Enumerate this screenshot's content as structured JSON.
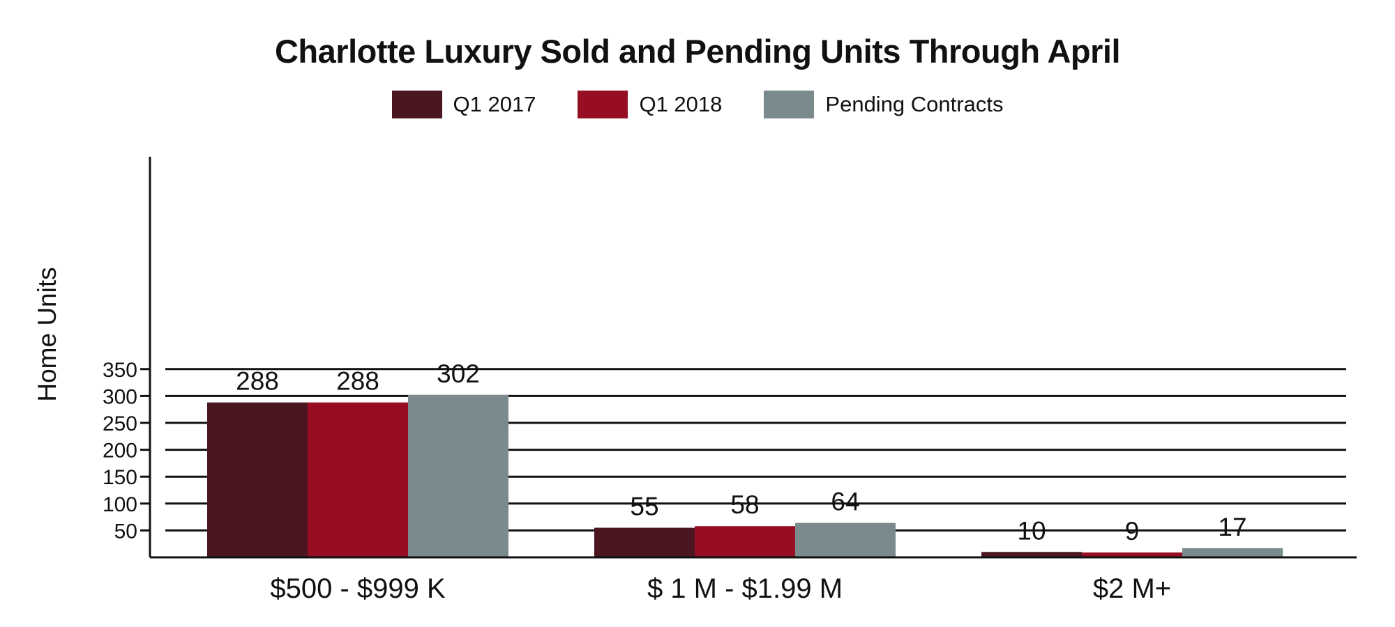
{
  "chart_data": {
    "type": "bar",
    "title": "Charlotte Luxury Sold and Pending Units Through April",
    "ylabel": "Home Units",
    "xlabel": "",
    "categories": [
      "$500 - $999 K",
      "$ 1 M - $1.99 M",
      "$2 M+"
    ],
    "series": [
      {
        "name": "Q1 2017",
        "values": [
          288,
          55,
          10
        ],
        "color": "#4a1721"
      },
      {
        "name": "Q1 2018",
        "values": [
          288,
          58,
          9
        ],
        "color": "#960d24"
      },
      {
        "name": "Pending Contracts",
        "values": [
          302,
          64,
          17
        ],
        "color": "#7b8a8d"
      }
    ],
    "ylim": [
      0,
      350
    ],
    "yticks": [
      50,
      100,
      150,
      200,
      250,
      300,
      350
    ],
    "grid": true,
    "legend_position": "top-center"
  }
}
